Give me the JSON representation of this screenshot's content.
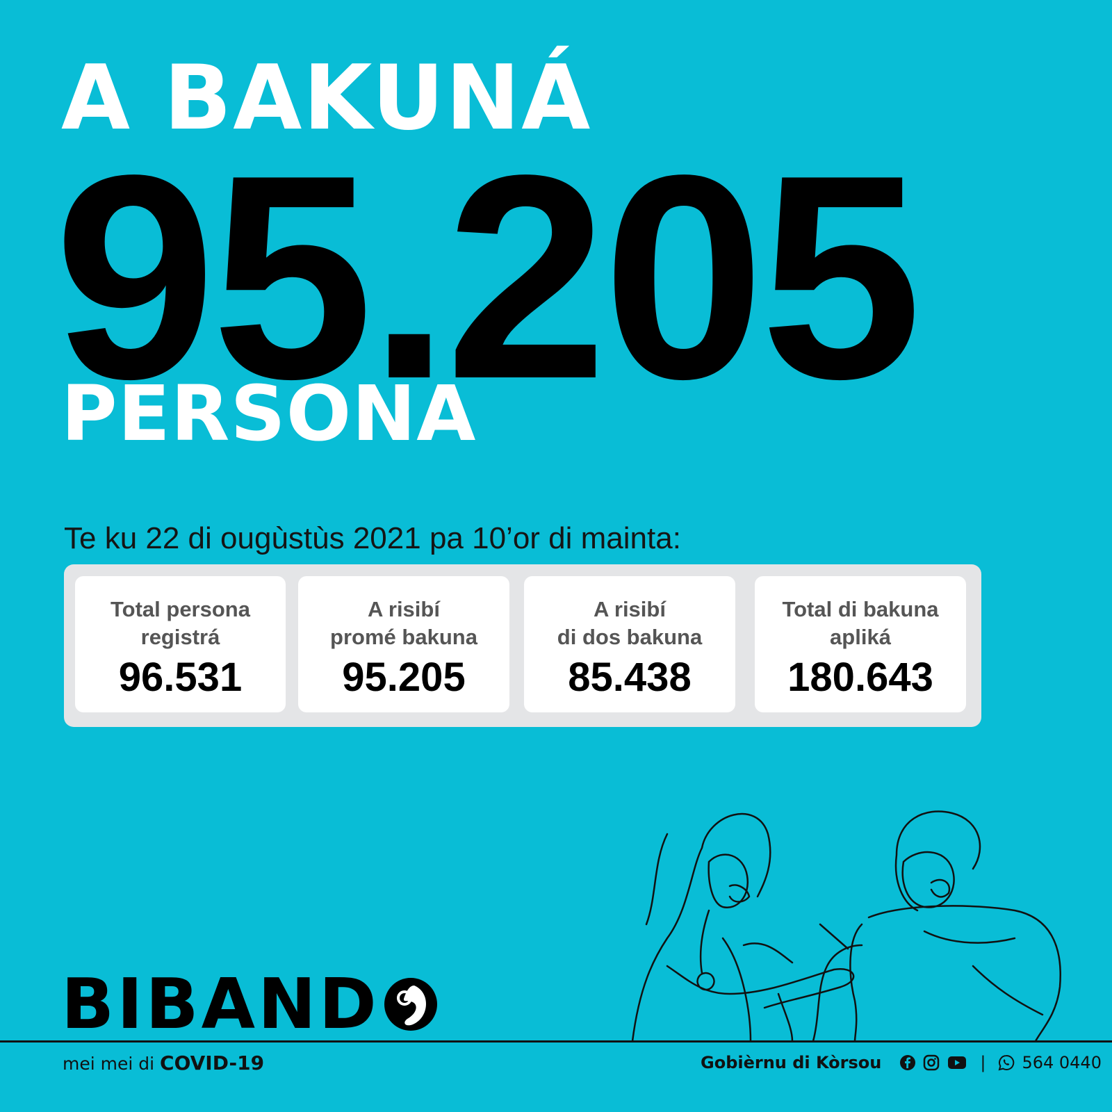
{
  "headline": "A BAKUNÁ",
  "big_number": "95.205",
  "unit": "PERSONA",
  "date_line": "Te ku 22 di ougùstùs 2021 pa 10’or di mainta:",
  "stats": [
    {
      "label": "Total persona\nregistrá",
      "value": "96.531"
    },
    {
      "label": "A risibí\npromé bakuna",
      "value": "95.205"
    },
    {
      "label": "A risibí\ndi dos bakuna",
      "value": "85.438"
    },
    {
      "label": "Total di bakuna\napliká",
      "value": "180.643"
    }
  ],
  "logo": {
    "text": "BIBAND",
    "icon": "bibando-o-logo-icon"
  },
  "tagline": {
    "prefix": "mei mei di ",
    "emphasis": "COVID-19"
  },
  "footer": {
    "government": "Gobièrnu di Kòrsou",
    "social_icons": [
      "facebook-icon",
      "instagram-icon",
      "youtube-icon"
    ],
    "separator": "|",
    "whatsapp_icon": "whatsapp-icon",
    "phone": "564 0440"
  },
  "colors": {
    "background": "#09bdd6",
    "panel": "#e4e5e7",
    "card": "#ffffff",
    "headline": "#ffffff",
    "number": "#000000"
  }
}
